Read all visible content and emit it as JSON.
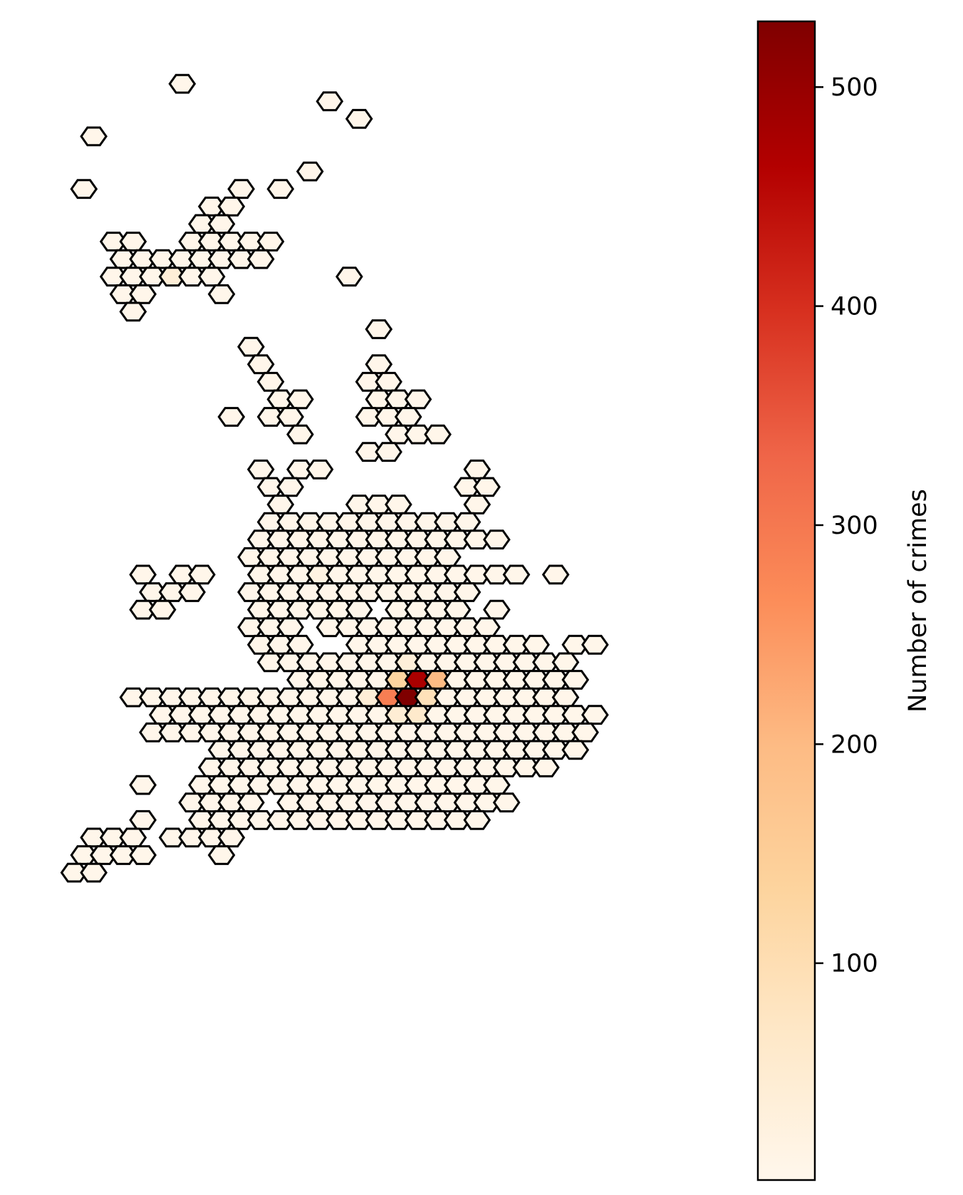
{
  "chart_data": {
    "type": "hexbin",
    "title": "",
    "xlabel": "",
    "ylabel": "",
    "axes_visible": false,
    "colormap": "OrRd",
    "colorbar": {
      "label": "Number of crimes",
      "range": [
        1,
        530
      ],
      "ticks": [
        100,
        200,
        300,
        400,
        500
      ],
      "tick_labels": [
        "100",
        "200",
        "300",
        "400",
        "500"
      ],
      "stops": [
        {
          "t": 0.0,
          "color": "#fff7ec"
        },
        {
          "t": 0.125,
          "color": "#fee8c8"
        },
        {
          "t": 0.25,
          "color": "#fdd49e"
        },
        {
          "t": 0.375,
          "color": "#fdbb84"
        },
        {
          "t": 0.5,
          "color": "#fc8d59"
        },
        {
          "t": 0.625,
          "color": "#ef6548"
        },
        {
          "t": 0.75,
          "color": "#d7301f"
        },
        {
          "t": 0.875,
          "color": "#b30000"
        },
        {
          "t": 1.0,
          "color": "#7f0000"
        }
      ]
    },
    "grid": {
      "columns": 30,
      "rows": 46,
      "default_count": 5
    },
    "occupied_bins": [
      {
        "row": 1,
        "cols": [
          5
        ]
      },
      {
        "row": 2,
        "cols": [
          13
        ]
      },
      {
        "row": 3,
        "cols": [
          14
        ]
      },
      {
        "row": 4,
        "cols": [
          1
        ]
      },
      {
        "row": 6,
        "cols": [
          12
        ]
      },
      {
        "row": 7,
        "cols": [
          0,
          8,
          10
        ]
      },
      {
        "row": 8,
        "cols": [
          7,
          8
        ]
      },
      {
        "row": 9,
        "cols": [
          6,
          7
        ]
      },
      {
        "row": 10,
        "cols": [
          2,
          3,
          6,
          7,
          8,
          9,
          10
        ]
      },
      {
        "row": 11,
        "cols": [
          2,
          3,
          4,
          5,
          6,
          7,
          8,
          9
        ]
      },
      {
        "row": 12,
        "cols": [
          2,
          3,
          4,
          5,
          6,
          7,
          14
        ]
      },
      {
        "row": 13,
        "cols": [
          2,
          3,
          7
        ]
      },
      {
        "row": 14,
        "cols": [
          3
        ]
      },
      {
        "row": 15,
        "cols": [
          15
        ]
      },
      {
        "row": 16,
        "cols": [
          9
        ]
      },
      {
        "row": 17,
        "cols": [
          9,
          15
        ]
      },
      {
        "row": 18,
        "cols": [
          10,
          15,
          16
        ]
      },
      {
        "row": 19,
        "cols": [
          10,
          11,
          15,
          16,
          17
        ]
      },
      {
        "row": 20,
        "cols": [
          8,
          10,
          11,
          15,
          16,
          17
        ]
      },
      {
        "row": 21,
        "cols": [
          11,
          16,
          17,
          18
        ]
      },
      {
        "row": 22,
        "cols": [
          15,
          16
        ]
      },
      {
        "row": 23,
        "cols": [
          9,
          11,
          12,
          20
        ]
      },
      {
        "row": 24,
        "cols": [
          10,
          11,
          20,
          21
        ]
      },
      {
        "row": 25,
        "cols": [
          10,
          14,
          15,
          16,
          20
        ]
      },
      {
        "row": 26,
        "cols": [
          10,
          11,
          12,
          13,
          14,
          15,
          16,
          17,
          18,
          19,
          20
        ]
      },
      {
        "row": 27,
        "cols": [
          9,
          10,
          11,
          12,
          13,
          14,
          15,
          16,
          17,
          18,
          19,
          20,
          21
        ]
      },
      {
        "row": 28,
        "cols": [
          9,
          10,
          11,
          12,
          13,
          14,
          15,
          16,
          17,
          18,
          19
        ]
      },
      {
        "row": 29,
        "cols": [
          3,
          5,
          6,
          9,
          10,
          11,
          12,
          13,
          14,
          15,
          16,
          17,
          18,
          19,
          19,
          20,
          21,
          22,
          24
        ]
      },
      {
        "row": 30,
        "cols": [
          4,
          5,
          6,
          9,
          10,
          11,
          12,
          13,
          14,
          15,
          16,
          17,
          18,
          19,
          20
        ]
      },
      {
        "row": 31,
        "cols": [
          3,
          4,
          9,
          10,
          11,
          12,
          13,
          14,
          16,
          17,
          18,
          19,
          21
        ]
      },
      {
        "row": 32,
        "cols": [
          9,
          10,
          11,
          13,
          14,
          15,
          16,
          17,
          18,
          19,
          20,
          21
        ]
      },
      {
        "row": 33,
        "cols": [
          9,
          10,
          11,
          14,
          15,
          16,
          17,
          18,
          19,
          20,
          21,
          22,
          23,
          25,
          26
        ]
      },
      {
        "row": 34,
        "cols": [
          10,
          11,
          12,
          13,
          14,
          15,
          16,
          17,
          18,
          19,
          20,
          21,
          22,
          23,
          24,
          25
        ]
      },
      {
        "row": 35,
        "cols": [
          11,
          12,
          13,
          14,
          15,
          16,
          17,
          18,
          19,
          20,
          21,
          22,
          23,
          24,
          25
        ]
      },
      {
        "row": 36,
        "cols": [
          3,
          4,
          5,
          6,
          7,
          8,
          9,
          10,
          11,
          12,
          13,
          14,
          15,
          16,
          17,
          18,
          19,
          20,
          21,
          22,
          23,
          24,
          25
        ]
      },
      {
        "row": 37,
        "cols": [
          4,
          5,
          6,
          7,
          8,
          9,
          10,
          11,
          12,
          13,
          14,
          15,
          16,
          17,
          18,
          19,
          20,
          21,
          22,
          23,
          24,
          25,
          26
        ]
      },
      {
        "row": 38,
        "cols": [
          4,
          5,
          6,
          7,
          8,
          9,
          10,
          11,
          12,
          13,
          14,
          15,
          16,
          17,
          18,
          19,
          20,
          21,
          22,
          23,
          24,
          25,
          26
        ]
      },
      {
        "row": 39,
        "cols": [
          7,
          8,
          9,
          10,
          11,
          12,
          13,
          14,
          15,
          16,
          17,
          18,
          19,
          20,
          21,
          22,
          23,
          24,
          25
        ]
      },
      {
        "row": 40,
        "cols": [
          7,
          8,
          9,
          10,
          11,
          12,
          13,
          14,
          15,
          16,
          17,
          18,
          19,
          20,
          21,
          22,
          23,
          24
        ]
      },
      {
        "row": 41,
        "cols": [
          3,
          6,
          7,
          8,
          9,
          10,
          11,
          12,
          13,
          14,
          15,
          16,
          17,
          18,
          19,
          20,
          21
        ]
      },
      {
        "row": 42,
        "cols": [
          6,
          7,
          8,
          9,
          11,
          12,
          13,
          14,
          15,
          16,
          17,
          18,
          19,
          20,
          21,
          22
        ]
      },
      {
        "row": 43,
        "cols": [
          3,
          6,
          7,
          8,
          9,
          10,
          11,
          12,
          13,
          14,
          15,
          16,
          17,
          18,
          19,
          20
        ]
      },
      {
        "row": 44,
        "cols": [
          1,
          2,
          3,
          5,
          6,
          7,
          8
        ]
      },
      {
        "row": 45,
        "cols": [
          0,
          1,
          2,
          3,
          7
        ]
      },
      {
        "row": 46,
        "cols": [
          0,
          1
        ]
      }
    ],
    "bins": [
      {
        "col": 17,
        "row": 35,
        "count": 475
      },
      {
        "col": 17,
        "row": 36,
        "count": 530
      },
      {
        "col": 16,
        "row": 36,
        "count": 290
      },
      {
        "col": 18,
        "row": 35,
        "count": 200
      },
      {
        "col": 16,
        "row": 35,
        "count": 130
      },
      {
        "col": 18,
        "row": 36,
        "count": 90
      },
      {
        "col": 17,
        "row": 37,
        "count": 60
      },
      {
        "col": 16,
        "row": 37,
        "count": 45
      },
      {
        "col": 15,
        "row": 36,
        "count": 40
      },
      {
        "col": 17,
        "row": 34,
        "count": 35
      },
      {
        "col": 5,
        "row": 12,
        "count": 40
      },
      {
        "col": 12,
        "row": 29,
        "count": 20
      }
    ]
  }
}
